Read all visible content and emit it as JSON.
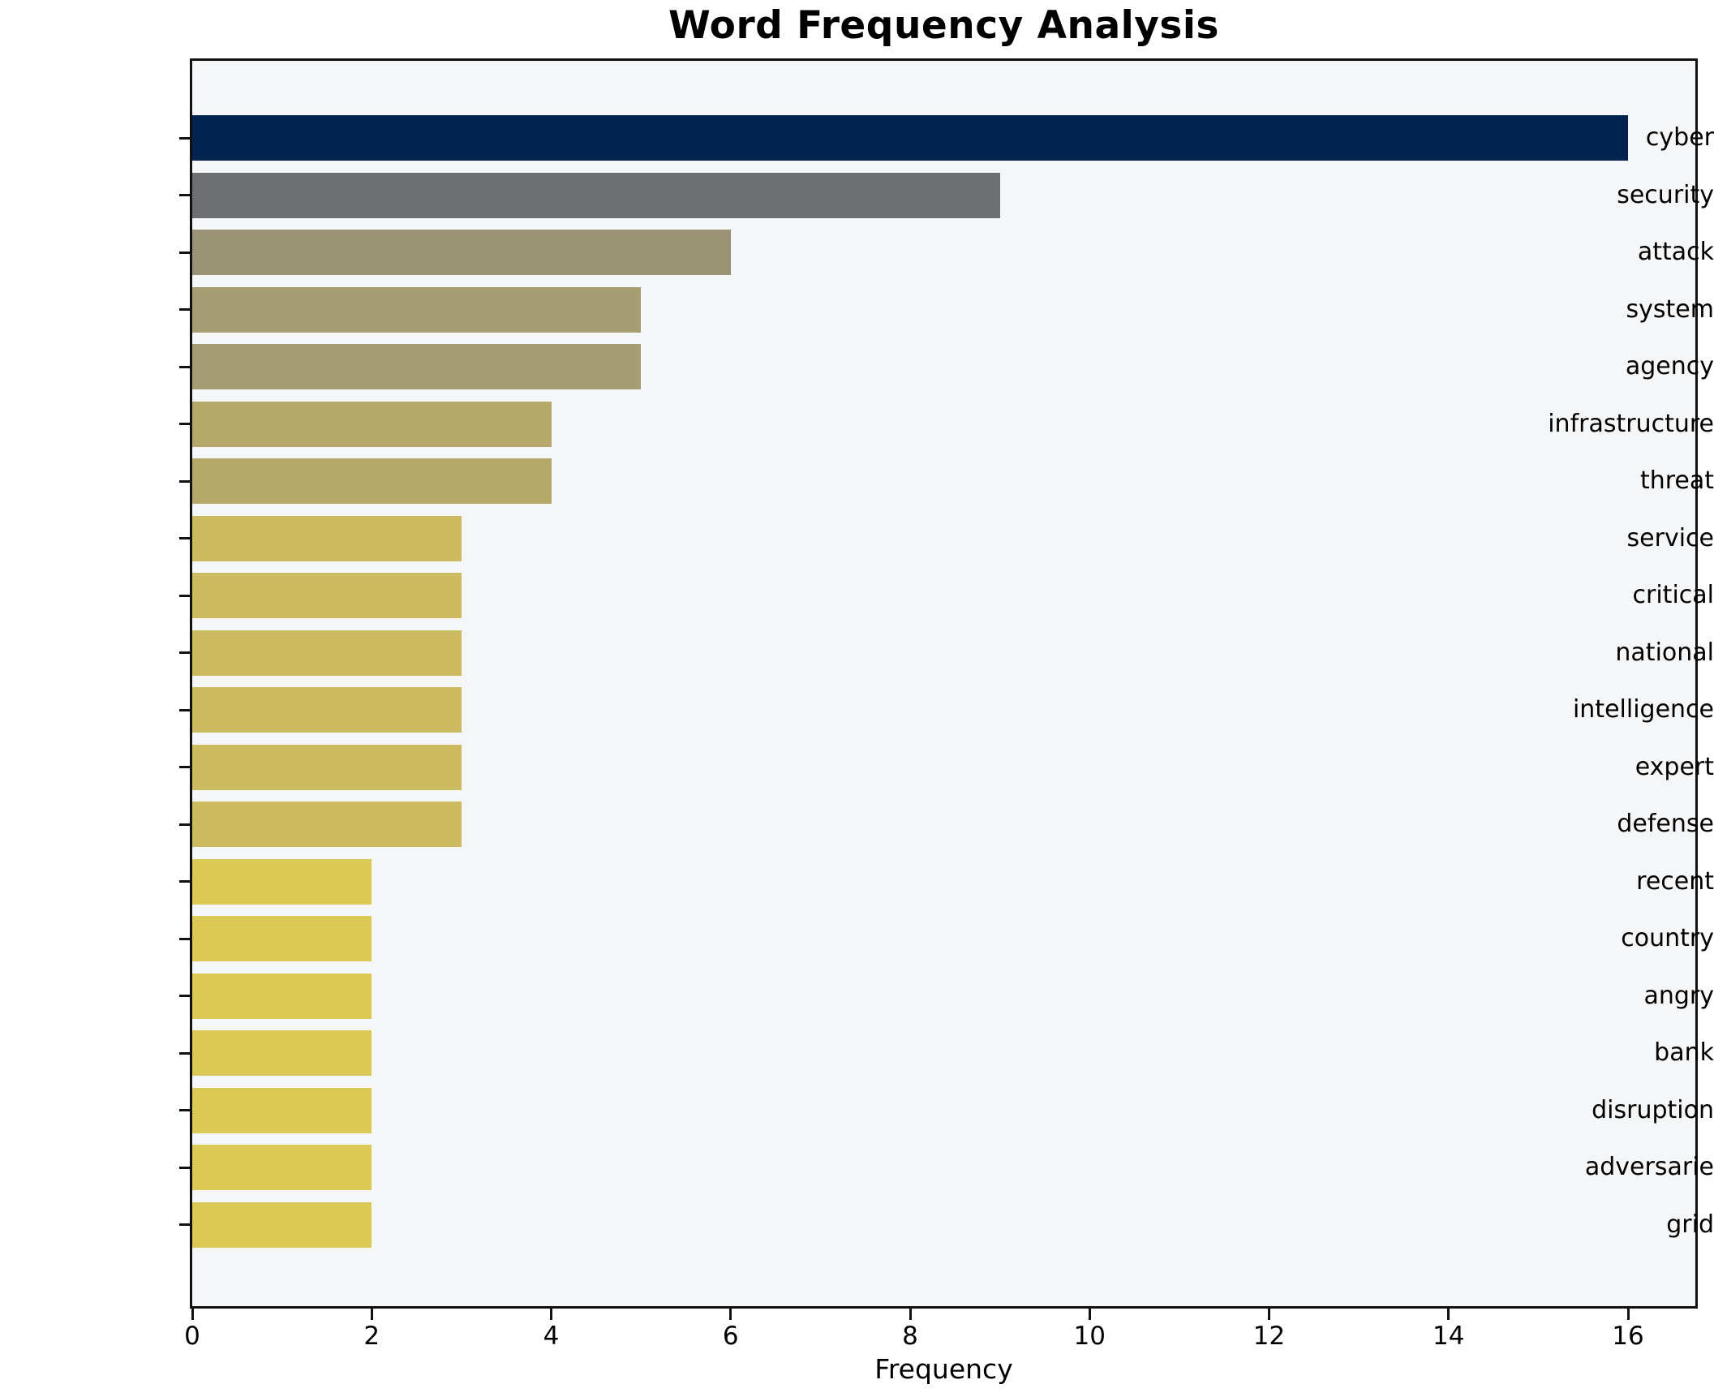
{
  "chart_data": {
    "type": "bar",
    "orientation": "horizontal",
    "title": "Word Frequency Analysis",
    "xlabel": "Frequency",
    "ylabel": "",
    "categories": [
      "cyber",
      "security",
      "attack",
      "system",
      "agency",
      "infrastructure",
      "threat",
      "service",
      "critical",
      "national",
      "intelligence",
      "expert",
      "defense",
      "recent",
      "country",
      "angry",
      "bank",
      "disruption",
      "adversarie",
      "grid"
    ],
    "values": [
      16,
      9,
      6,
      5,
      5,
      4,
      4,
      3,
      3,
      3,
      3,
      3,
      3,
      2,
      2,
      2,
      2,
      2,
      2,
      2
    ],
    "bar_colors": [
      "#02224f",
      "#6d6e71",
      "#9a9274",
      "#a79d73",
      "#a79d73",
      "#b5a86a",
      "#b5a86a",
      "#ccba60",
      "#ccba60",
      "#ccba60",
      "#ccba60",
      "#ccba60",
      "#ccba60",
      "#dcc855",
      "#dcc855",
      "#dcc855",
      "#dcc855",
      "#dcc855",
      "#dcc855",
      "#dcc855"
    ],
    "xlim": [
      0,
      16.75
    ],
    "xticks": [
      0,
      2,
      4,
      6,
      8,
      10,
      12,
      14,
      16
    ],
    "grid": false,
    "legend_position": "none",
    "colors": {
      "plot_bg": "#f5f6f7",
      "fig_bg": "#ffffff",
      "spine": "#111111",
      "text": "#000000"
    }
  }
}
